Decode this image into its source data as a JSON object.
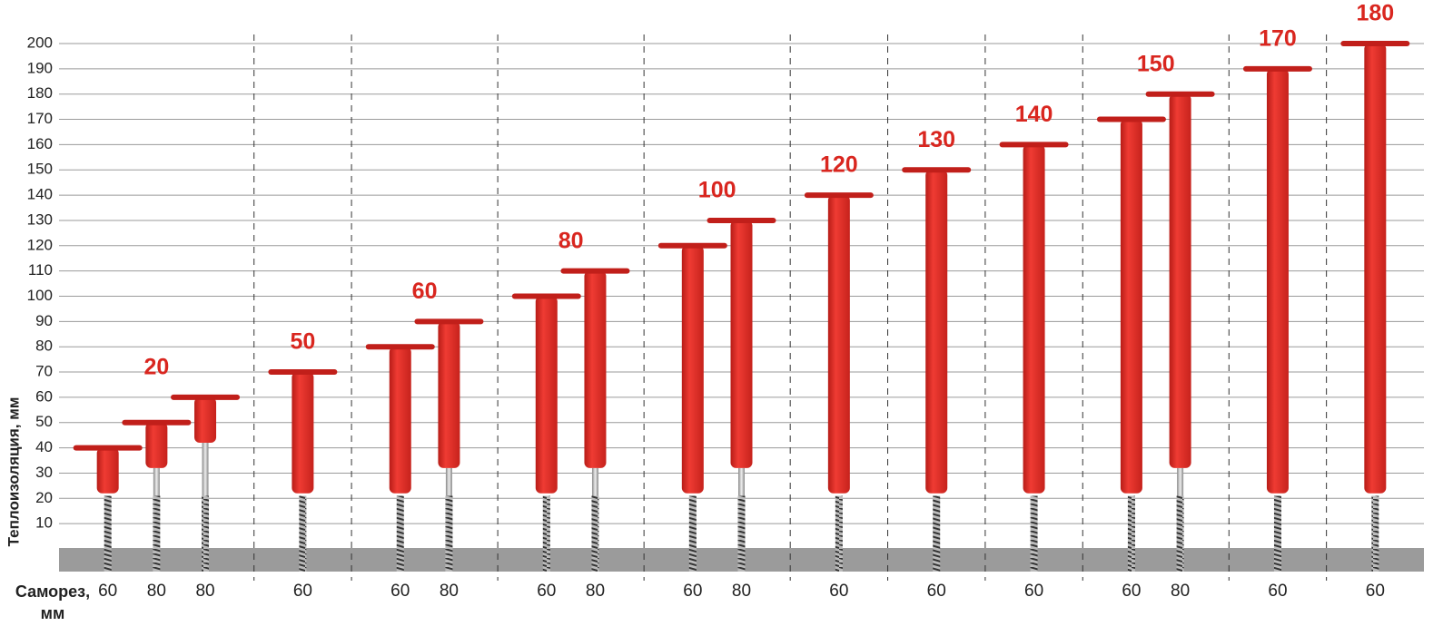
{
  "chart_data": {
    "type": "dowel",
    "y_label": "Теплоизоляция, мм",
    "x_label": "Саморез, мм",
    "ylim": [
      0,
      200
    ],
    "yticks": [
      10,
      20,
      30,
      40,
      50,
      60,
      70,
      80,
      90,
      100,
      110,
      120,
      130,
      140,
      150,
      160,
      170,
      180,
      190,
      200
    ],
    "grid": true,
    "color": "#e3312b",
    "label_color": "#d9261f",
    "groups": [
      {
        "label": 20,
        "values": [
          40,
          50,
          60
        ],
        "screws": [
          60,
          80,
          80
        ]
      },
      {
        "label": 50,
        "values": [
          70
        ],
        "screws": [
          60
        ]
      },
      {
        "label": 60,
        "values": [
          80,
          90
        ],
        "screws": [
          60,
          80
        ]
      },
      {
        "label": 80,
        "values": [
          100,
          110
        ],
        "screws": [
          60,
          80
        ]
      },
      {
        "label": 100,
        "values": [
          120,
          130
        ],
        "screws": [
          60,
          80
        ]
      },
      {
        "label": 120,
        "values": [
          140
        ],
        "screws": [
          60
        ]
      },
      {
        "label": 130,
        "values": [
          150
        ],
        "screws": [
          60
        ]
      },
      {
        "label": 140,
        "values": [
          160
        ],
        "screws": [
          60
        ]
      },
      {
        "label": 150,
        "values": [
          170,
          180
        ],
        "screws": [
          60,
          80
        ]
      },
      {
        "label": 170,
        "values": [
          190
        ],
        "screws": [
          60
        ]
      },
      {
        "label": 180,
        "values": [
          200
        ],
        "screws": [
          60
        ]
      }
    ]
  }
}
